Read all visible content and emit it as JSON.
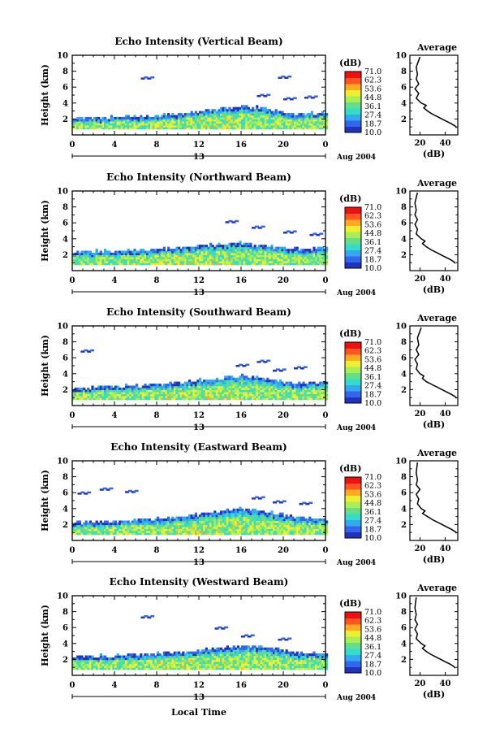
{
  "figure": {
    "xlabel": "Local Time",
    "date_label": "Aug 2004",
    "day_label": "13"
  },
  "colorbar": {
    "unit": "(dB)",
    "ticks": [
      "71.0",
      "62.3",
      "53.6",
      "44.8",
      "36.1",
      "27.4",
      "18.7",
      "10.0"
    ],
    "range": [
      10.0,
      71.0
    ],
    "colors": [
      "#2233bb",
      "#3366ee",
      "#33aaee",
      "#33ddcc",
      "#66dd88",
      "#aaee55",
      "#eeee33",
      "#ffaa22",
      "#ff5522",
      "#ee1111"
    ]
  },
  "chart_data": [
    {
      "type": "heatmap",
      "title": "Echo Intensity (Vertical Beam)",
      "ylabel": "Height (km)",
      "xlim": [
        0,
        24
      ],
      "ylim": [
        0,
        10
      ],
      "xticks": [
        "0",
        "4",
        "8",
        "12",
        "16",
        "20",
        "0"
      ],
      "yticks": [
        "2",
        "4",
        "6",
        "8",
        "10"
      ],
      "echo_top_km": [
        [
          0,
          2.0
        ],
        [
          4,
          2.1
        ],
        [
          8,
          2.3
        ],
        [
          11,
          2.6
        ],
        [
          13,
          3.0
        ],
        [
          16,
          3.5
        ],
        [
          18,
          3.3
        ],
        [
          21,
          2.5
        ],
        [
          24,
          2.6
        ]
      ],
      "sparse_echoes": [
        [
          6.5,
          7.2
        ],
        [
          19.5,
          7.3
        ],
        [
          17.5,
          5.0
        ],
        [
          20,
          4.6
        ],
        [
          22,
          4.8
        ]
      ],
      "average": {
        "xlabel": "(dB)",
        "title": "Average",
        "xticks": [
          "20",
          "40"
        ],
        "xlim": [
          12,
          50
        ],
        "profile": [
          [
            9.8,
            20
          ],
          [
            8.5,
            17
          ],
          [
            7.6,
            18
          ],
          [
            7.0,
            17
          ],
          [
            6.4,
            19
          ],
          [
            5.8,
            16
          ],
          [
            5.2,
            19
          ],
          [
            4.6,
            17
          ],
          [
            4.0,
            21
          ],
          [
            3.7,
            25
          ],
          [
            3.4,
            23
          ],
          [
            3.0,
            26
          ],
          [
            2.6,
            30
          ],
          [
            2.2,
            35
          ],
          [
            1.8,
            40
          ],
          [
            1.4,
            45
          ],
          [
            1.1,
            48
          ],
          [
            0.9,
            49
          ]
        ]
      }
    },
    {
      "type": "heatmap",
      "title": "Echo Intensity (Northward Beam)",
      "ylabel": "Height (km)",
      "xlim": [
        0,
        24
      ],
      "ylim": [
        0,
        10
      ],
      "xticks": [
        "0",
        "4",
        "8",
        "12",
        "16",
        "20",
        "0"
      ],
      "yticks": [
        "2",
        "4",
        "6",
        "8",
        "10"
      ],
      "echo_top_km": [
        [
          0,
          2.2
        ],
        [
          4,
          2.4
        ],
        [
          8,
          2.6
        ],
        [
          11,
          2.8
        ],
        [
          13,
          3.1
        ],
        [
          16,
          3.4
        ],
        [
          18,
          3.0
        ],
        [
          21,
          2.6
        ],
        [
          24,
          2.7
        ]
      ],
      "sparse_echoes": [
        [
          14.5,
          6.2
        ],
        [
          17,
          5.5
        ],
        [
          20,
          4.9
        ],
        [
          22.5,
          4.6
        ]
      ],
      "average": {
        "xlabel": "(dB)",
        "title": "Average",
        "xticks": [
          "20",
          "40"
        ],
        "xlim": [
          12,
          50
        ],
        "profile": [
          [
            9.8,
            18
          ],
          [
            8.5,
            16
          ],
          [
            7.6,
            17
          ],
          [
            7.0,
            16
          ],
          [
            6.4,
            18
          ],
          [
            5.8,
            16
          ],
          [
            5.2,
            18
          ],
          [
            4.6,
            17
          ],
          [
            4.0,
            21
          ],
          [
            3.7,
            24
          ],
          [
            3.4,
            22
          ],
          [
            3.0,
            25
          ],
          [
            2.6,
            29
          ],
          [
            2.2,
            34
          ],
          [
            1.8,
            39
          ],
          [
            1.4,
            44
          ],
          [
            1.1,
            47
          ],
          [
            0.9,
            48
          ]
        ]
      }
    },
    {
      "type": "heatmap",
      "title": "Echo Intensity (Southward Beam)",
      "ylabel": "Height (km)",
      "xlim": [
        0,
        24
      ],
      "ylim": [
        0,
        10
      ],
      "xticks": [
        "0",
        "4",
        "8",
        "12",
        "16",
        "20",
        "0"
      ],
      "yticks": [
        "2",
        "4",
        "6",
        "8",
        "10"
      ],
      "echo_top_km": [
        [
          0,
          2.0
        ],
        [
          4,
          2.3
        ],
        [
          8,
          2.5
        ],
        [
          11,
          2.9
        ],
        [
          13,
          3.2
        ],
        [
          16,
          3.6
        ],
        [
          18,
          3.4
        ],
        [
          21,
          2.7
        ],
        [
          24,
          2.8
        ]
      ],
      "sparse_echoes": [
        [
          0.8,
          6.9
        ],
        [
          15.5,
          5.1
        ],
        [
          17.5,
          5.6
        ],
        [
          19,
          4.5
        ],
        [
          21,
          4.8
        ]
      ],
      "average": {
        "xlabel": "(dB)",
        "title": "Average",
        "xticks": [
          "20",
          "40"
        ],
        "xlim": [
          12,
          50
        ],
        "profile": [
          [
            9.8,
            21
          ],
          [
            8.5,
            18
          ],
          [
            7.6,
            19
          ],
          [
            7.0,
            17
          ],
          [
            6.4,
            19
          ],
          [
            5.8,
            16
          ],
          [
            5.2,
            18
          ],
          [
            4.6,
            17
          ],
          [
            4.0,
            20
          ],
          [
            3.7,
            23
          ],
          [
            3.4,
            22
          ],
          [
            3.0,
            25
          ],
          [
            2.6,
            30
          ],
          [
            2.2,
            35
          ],
          [
            1.8,
            40
          ],
          [
            1.4,
            45
          ],
          [
            1.1,
            48
          ],
          [
            0.9,
            49
          ]
        ]
      }
    },
    {
      "type": "heatmap",
      "title": "Echo Intensity (Eastward Beam)",
      "ylabel": "Height (km)",
      "xlim": [
        0,
        24
      ],
      "ylim": [
        0,
        10
      ],
      "xticks": [
        "0",
        "4",
        "8",
        "12",
        "16",
        "20",
        "0"
      ],
      "yticks": [
        "2",
        "4",
        "6",
        "8",
        "10"
      ],
      "echo_top_km": [
        [
          0,
          2.1
        ],
        [
          4,
          2.3
        ],
        [
          8,
          2.6
        ],
        [
          11,
          3.0
        ],
        [
          13,
          3.3
        ],
        [
          16,
          3.9
        ],
        [
          18,
          3.6
        ],
        [
          21,
          2.8
        ],
        [
          24,
          2.6
        ]
      ],
      "sparse_echoes": [
        [
          0.5,
          6.0
        ],
        [
          2.6,
          6.5
        ],
        [
          5,
          6.2
        ],
        [
          17,
          5.4
        ],
        [
          19,
          4.9
        ],
        [
          21.5,
          4.7
        ]
      ],
      "average": {
        "xlabel": "(dB)",
        "title": "Average",
        "xticks": [
          "20",
          "40"
        ],
        "xlim": [
          12,
          50
        ],
        "profile": [
          [
            9.8,
            18
          ],
          [
            8.5,
            17
          ],
          [
            7.6,
            18
          ],
          [
            7.0,
            17
          ],
          [
            6.4,
            20
          ],
          [
            5.8,
            17
          ],
          [
            5.2,
            19
          ],
          [
            4.6,
            18
          ],
          [
            4.0,
            21
          ],
          [
            3.7,
            24
          ],
          [
            3.4,
            22
          ],
          [
            3.0,
            26
          ],
          [
            2.6,
            30
          ],
          [
            2.2,
            35
          ],
          [
            1.8,
            40
          ],
          [
            1.4,
            45
          ],
          [
            1.1,
            48
          ],
          [
            0.9,
            49
          ]
        ]
      }
    },
    {
      "type": "heatmap",
      "title": "Echo Intensity (Westward Beam)",
      "ylabel": "Height (km)",
      "xlim": [
        0,
        24
      ],
      "ylim": [
        0,
        10
      ],
      "xticks": [
        "0",
        "4",
        "8",
        "12",
        "16",
        "20",
        "0"
      ],
      "yticks": [
        "2",
        "4",
        "6",
        "8",
        "10"
      ],
      "echo_top_km": [
        [
          0,
          2.2
        ],
        [
          4,
          2.4
        ],
        [
          8,
          2.6
        ],
        [
          11,
          2.9
        ],
        [
          13,
          3.2
        ],
        [
          16,
          3.6
        ],
        [
          18,
          3.5
        ],
        [
          21,
          2.8
        ],
        [
          24,
          2.7
        ]
      ],
      "sparse_echoes": [
        [
          6.5,
          7.4
        ],
        [
          13.5,
          6.0
        ],
        [
          16,
          5.0
        ],
        [
          19.5,
          4.6
        ]
      ],
      "average": {
        "xlabel": "(dB)",
        "title": "Average",
        "xticks": [
          "20",
          "40"
        ],
        "xlim": [
          12,
          50
        ],
        "profile": [
          [
            9.8,
            17
          ],
          [
            8.5,
            16
          ],
          [
            7.6,
            17
          ],
          [
            7.0,
            16
          ],
          [
            6.4,
            18
          ],
          [
            5.8,
            16
          ],
          [
            5.2,
            18
          ],
          [
            4.6,
            17
          ],
          [
            4.0,
            21
          ],
          [
            3.7,
            24
          ],
          [
            3.4,
            22
          ],
          [
            3.0,
            25
          ],
          [
            2.6,
            29
          ],
          [
            2.2,
            34
          ],
          [
            1.8,
            39
          ],
          [
            1.4,
            44
          ],
          [
            1.1,
            47
          ],
          [
            0.9,
            48
          ]
        ]
      }
    }
  ]
}
